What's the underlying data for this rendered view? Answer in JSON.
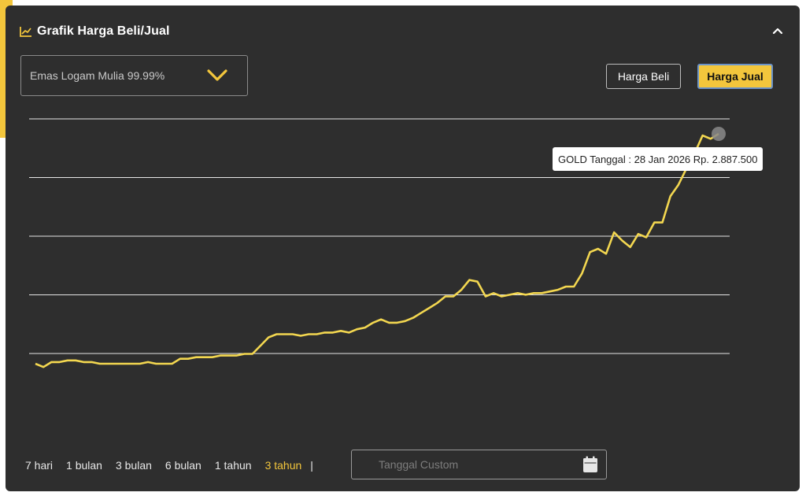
{
  "panel": {
    "title": "Grafik Harga Beli/Jual",
    "title_icon": "chart-line-icon",
    "collapse_icon": "chevron-up-icon"
  },
  "product_select": {
    "value": "Emas Logam Mulia 99.99%",
    "icon": "chevron-down-icon"
  },
  "price_toggle": {
    "beli_label": "Harga Beli",
    "jual_label": "Harga Jual",
    "selected": "Harga Jual"
  },
  "tooltip": {
    "text": "GOLD Tanggal : 28 Jan 2026 Rp. 2.887.500"
  },
  "ranges": [
    {
      "label": "7 hari",
      "active": false
    },
    {
      "label": "1 bulan",
      "active": false
    },
    {
      "label": "3 bulan",
      "active": false
    },
    {
      "label": "6 bulan",
      "active": false
    },
    {
      "label": "1 tahun",
      "active": false
    },
    {
      "label": "3 tahun",
      "active": true
    }
  ],
  "range_separator": "|",
  "custom_date": {
    "placeholder": "Tanggal Custom",
    "icon": "calendar-icon"
  },
  "colors": {
    "line": "#f3d750",
    "accent": "#f3c63c",
    "panel_bg": "#2e2e2e",
    "gridline": "#e6e6e6"
  },
  "chart_data": {
    "type": "line",
    "series": [
      {
        "values": [
          1.0,
          0.98,
          1.01,
          1.01,
          1.02,
          1.02,
          1.01,
          1.01,
          1.0,
          1.0,
          1.0,
          1.0,
          1.0,
          1.0,
          1.01,
          1.0,
          1.0,
          1.0,
          1.03,
          1.03,
          1.04,
          1.04,
          1.04,
          1.05,
          1.05,
          1.05,
          1.06,
          1.06,
          1.11,
          1.16,
          1.18,
          1.18,
          1.18,
          1.17,
          1.18,
          1.18,
          1.19,
          1.19,
          1.2,
          1.19,
          1.21,
          1.22,
          1.25,
          1.27,
          1.25,
          1.25,
          1.26,
          1.28,
          1.31,
          1.34,
          1.37,
          1.41,
          1.41,
          1.45,
          1.51,
          1.5,
          1.41,
          1.43,
          1.41,
          1.42,
          1.43,
          1.42,
          1.43,
          1.43,
          1.44,
          1.45,
          1.47,
          1.47,
          1.55,
          1.68,
          1.7,
          1.67,
          1.8,
          1.75,
          1.71,
          1.79,
          1.77,
          1.86,
          1.86,
          2.02,
          2.09,
          2.19,
          2.28,
          2.39,
          2.37,
          2.4
        ],
        "peak_value": 2887500,
        "peak_label_date": "28 Jan 2026"
      }
    ],
    "grid": true,
    "gridline_count": 5,
    "ylabel": "",
    "xlabel": ""
  }
}
